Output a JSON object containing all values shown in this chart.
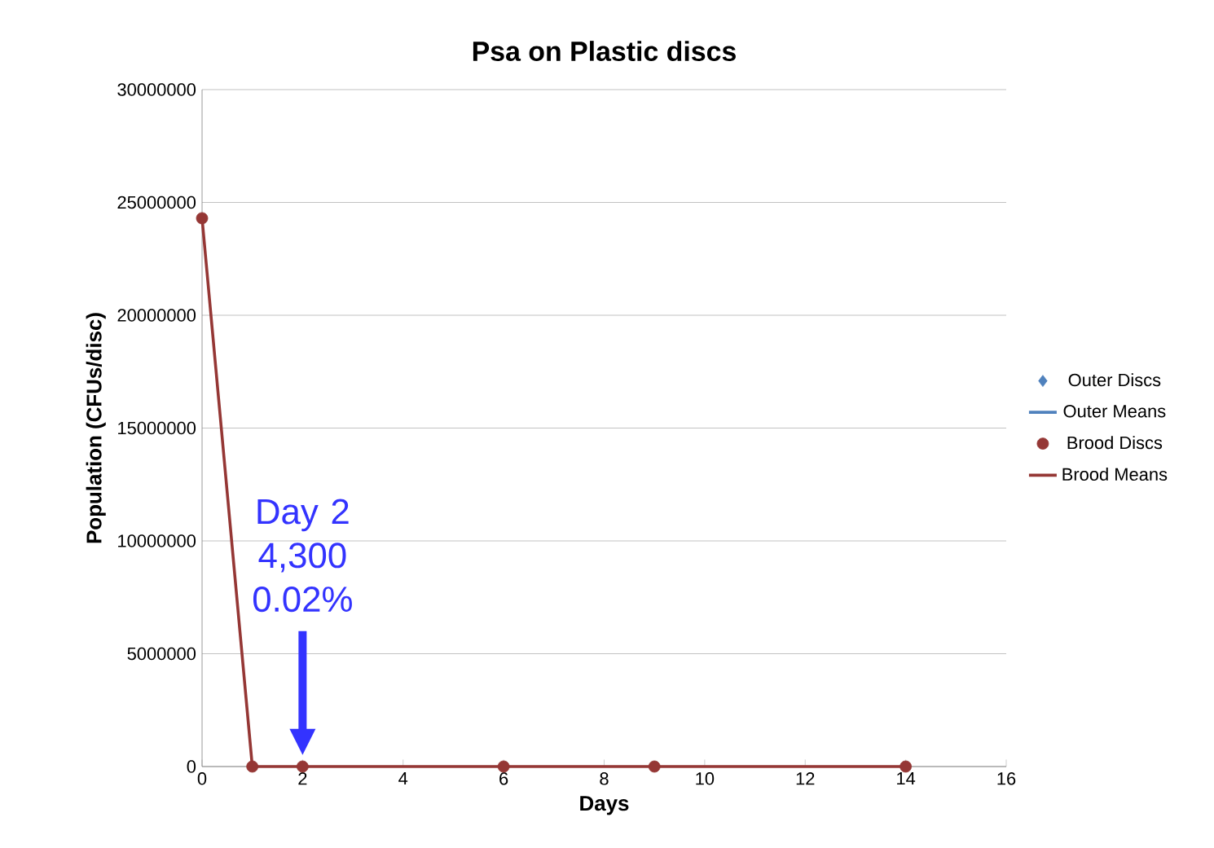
{
  "chart_data": {
    "type": "line",
    "title": "Psa on Plastic discs",
    "xlabel": "Days",
    "ylabel": "Population (CFUs/disc)",
    "x": [
      0,
      1,
      2,
      6,
      9,
      14
    ],
    "series": [
      {
        "name": "Outer Discs",
        "type": "scatter",
        "marker": "diamond",
        "color": "#4f81bd",
        "values": [
          null,
          null,
          null,
          null,
          null,
          null
        ]
      },
      {
        "name": "Outer Means",
        "marker": "none",
        "color": "#4f81bd",
        "values": [
          null,
          null,
          null,
          null,
          null,
          null
        ]
      },
      {
        "name": "Brood Discs",
        "type": "scatter",
        "marker": "circle",
        "color": "#953735",
        "values": [
          24300000,
          0,
          0,
          0,
          0,
          0
        ]
      },
      {
        "name": "Brood Means",
        "marker": "none",
        "color": "#953735",
        "values": [
          24300000,
          0,
          0,
          0,
          0,
          0
        ]
      }
    ],
    "xlim": [
      0,
      16
    ],
    "xticks": [
      0,
      2,
      4,
      6,
      8,
      10,
      12,
      14,
      16
    ],
    "ylim": [
      0,
      30000000
    ],
    "yticks": [
      0,
      5000000,
      10000000,
      15000000,
      20000000,
      25000000,
      30000000
    ],
    "grid": "y",
    "legend": "right",
    "annotations": [
      "Day 2 4,300 0.02%"
    ]
  }
}
